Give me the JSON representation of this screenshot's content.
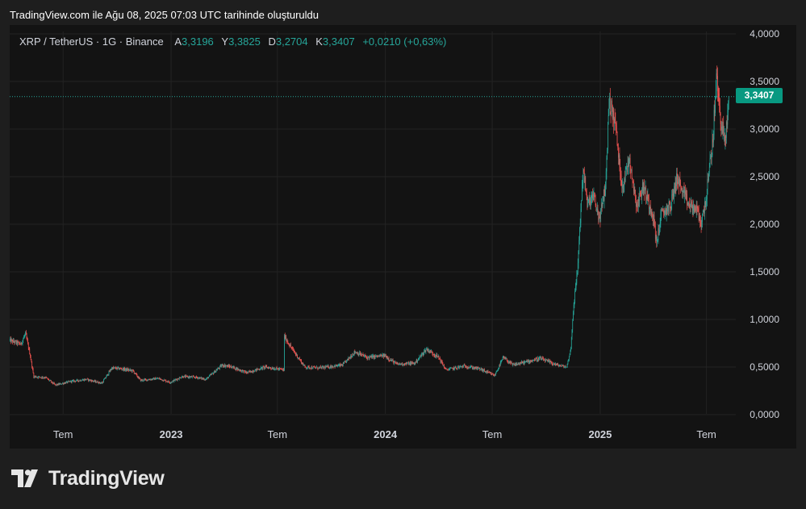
{
  "header": {
    "created_text": "TradingView.com ile Ağu 08, 2025 07:03 UTC tarihinde oluşturuldu"
  },
  "legend": {
    "symbol": "XRP / TetherUS · 1G · Binance",
    "open_label": "A",
    "open": "3,3196",
    "high_label": "Y",
    "high": "3,3825",
    "low_label": "D",
    "low": "3,2704",
    "close_label": "K",
    "close": "3,3407",
    "change": "+0,0210 (+0,63%)"
  },
  "last_price_label": "3,3407",
  "brand": {
    "name": "TradingView"
  },
  "colors": {
    "up": "#26a69a",
    "down": "#ef5350",
    "background": "#131313",
    "outer": "#1e1e1e",
    "price_tag": "#089981"
  },
  "chart_data": {
    "type": "candlestick",
    "symbol": "XRP/USDT",
    "interval": "1D",
    "exchange": "Binance",
    "ylim": [
      0,
      4
    ],
    "y_ticks": [
      "4,0000",
      "3,5000",
      "3,0000",
      "2,5000",
      "2,0000",
      "1,5000",
      "1,0000",
      "0,5000",
      "0,0000"
    ],
    "y_tick_values": [
      4,
      3.5,
      3,
      2.5,
      2,
      1.5,
      1,
      0.5,
      0
    ],
    "x_ticks": [
      {
        "label": "Tem",
        "date": "2022-07-01",
        "year": false
      },
      {
        "label": "2023",
        "date": "2023-01-01",
        "year": true
      },
      {
        "label": "Tem",
        "date": "2023-07-01",
        "year": false
      },
      {
        "label": "2024",
        "date": "2024-01-01",
        "year": true
      },
      {
        "label": "Tem",
        "date": "2024-07-01",
        "year": false
      },
      {
        "label": "2025",
        "date": "2025-01-01",
        "year": true
      },
      {
        "label": "Tem",
        "date": "2025-07-01",
        "year": false
      }
    ],
    "xlim": [
      "2022-04-01",
      "2025-08-20"
    ],
    "last_price": 3.3407,
    "price_path": [
      [
        "2022-04-01",
        0.78
      ],
      [
        "2022-04-20",
        0.74
      ],
      [
        "2022-04-28",
        0.85
      ],
      [
        "2022-05-06",
        0.62
      ],
      [
        "2022-05-12",
        0.4
      ],
      [
        "2022-06-01",
        0.39
      ],
      [
        "2022-06-18",
        0.31
      ],
      [
        "2022-07-15",
        0.35
      ],
      [
        "2022-08-10",
        0.37
      ],
      [
        "2022-09-05",
        0.33
      ],
      [
        "2022-09-22",
        0.49
      ],
      [
        "2022-10-10",
        0.48
      ],
      [
        "2022-10-28",
        0.46
      ],
      [
        "2022-11-10",
        0.36
      ],
      [
        "2022-12-10",
        0.38
      ],
      [
        "2022-12-31",
        0.34
      ],
      [
        "2023-01-20",
        0.4
      ],
      [
        "2023-02-15",
        0.39
      ],
      [
        "2023-03-01",
        0.37
      ],
      [
        "2023-03-29",
        0.52
      ],
      [
        "2023-04-15",
        0.5
      ],
      [
        "2023-05-10",
        0.44
      ],
      [
        "2023-06-10",
        0.5
      ],
      [
        "2023-07-12",
        0.47
      ],
      [
        "2023-07-13",
        0.82
      ],
      [
        "2023-07-25",
        0.7
      ],
      [
        "2023-08-17",
        0.5
      ],
      [
        "2023-09-10",
        0.49
      ],
      [
        "2023-10-20",
        0.52
      ],
      [
        "2023-11-10",
        0.66
      ],
      [
        "2023-12-01",
        0.6
      ],
      [
        "2023-12-31",
        0.62
      ],
      [
        "2024-01-20",
        0.53
      ],
      [
        "2024-02-20",
        0.54
      ],
      [
        "2024-03-11",
        0.69
      ],
      [
        "2024-04-01",
        0.6
      ],
      [
        "2024-04-13",
        0.47
      ],
      [
        "2024-05-15",
        0.51
      ],
      [
        "2024-06-10",
        0.48
      ],
      [
        "2024-07-05",
        0.41
      ],
      [
        "2024-07-20",
        0.6
      ],
      [
        "2024-08-05",
        0.52
      ],
      [
        "2024-09-01",
        0.56
      ],
      [
        "2024-09-20",
        0.59
      ],
      [
        "2024-10-20",
        0.52
      ],
      [
        "2024-11-05",
        0.5
      ],
      [
        "2024-11-12",
        0.7
      ],
      [
        "2024-11-16",
        1.1
      ],
      [
        "2024-11-23",
        1.5
      ],
      [
        "2024-12-03",
        2.6
      ],
      [
        "2024-12-10",
        2.2
      ],
      [
        "2024-12-20",
        2.3
      ],
      [
        "2024-12-31",
        2.05
      ],
      [
        "2025-01-10",
        2.4
      ],
      [
        "2025-01-16",
        3.3
      ],
      [
        "2025-01-27",
        3.05
      ],
      [
        "2025-02-03",
        2.6
      ],
      [
        "2025-02-08",
        2.4
      ],
      [
        "2025-02-20",
        2.7
      ],
      [
        "2025-03-01",
        2.3
      ],
      [
        "2025-03-05",
        2.2
      ],
      [
        "2025-03-15",
        2.4
      ],
      [
        "2025-04-01",
        2.1
      ],
      [
        "2025-04-07",
        1.8
      ],
      [
        "2025-04-15",
        2.1
      ],
      [
        "2025-05-01",
        2.2
      ],
      [
        "2025-05-12",
        2.5
      ],
      [
        "2025-05-20",
        2.35
      ],
      [
        "2025-06-01",
        2.2
      ],
      [
        "2025-06-15",
        2.15
      ],
      [
        "2025-06-22",
        2.0
      ],
      [
        "2025-07-01",
        2.3
      ],
      [
        "2025-07-12",
        2.9
      ],
      [
        "2025-07-18",
        3.55
      ],
      [
        "2025-07-25",
        3.1
      ],
      [
        "2025-08-02",
        2.85
      ],
      [
        "2025-08-08",
        3.34
      ]
    ]
  }
}
